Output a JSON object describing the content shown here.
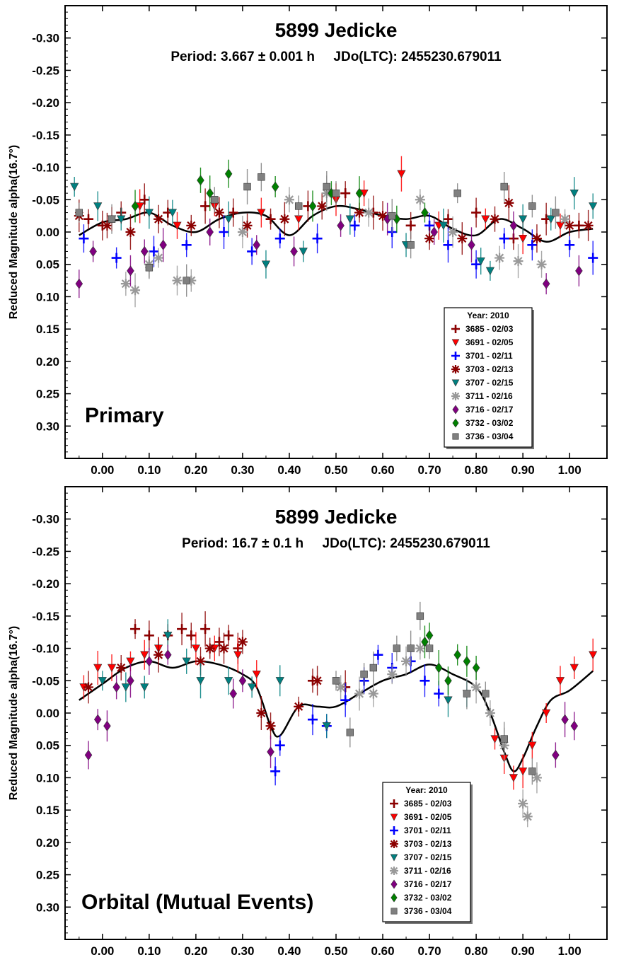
{
  "chart_data": [
    {
      "type": "scatter",
      "title": "5899 Jedicke",
      "subtitle": "Period: 3.667 ± 0.001 h     JDo(LTC): 2455230.679011",
      "ylabel": "Reduced Magnitude alpha(16.7°)",
      "xlabel": "",
      "panel_label": "Primary",
      "xlim": [
        -0.08,
        1.08
      ],
      "ylim": [
        0.35,
        -0.35
      ],
      "y_inverted": true,
      "x_ticks": [
        "0.00",
        "0.10",
        "0.20",
        "0.30",
        "0.40",
        "0.50",
        "0.60",
        "0.70",
        "0.80",
        "0.90",
        "1.00"
      ],
      "x_tick_values": [
        0,
        0.1,
        0.2,
        0.3,
        0.4,
        0.5,
        0.6,
        0.7,
        0.8,
        0.9,
        1.0
      ],
      "y_ticks": [
        "-0.30",
        "-0.25",
        "-0.20",
        "-0.15",
        "-0.10",
        "-0.05",
        "0.00",
        "0.05",
        "0.10",
        "0.15",
        "0.20",
        "0.25",
        "0.30"
      ],
      "y_tick_values": [
        -0.3,
        -0.25,
        -0.2,
        -0.15,
        -0.1,
        -0.05,
        0.0,
        0.05,
        0.1,
        0.15,
        0.2,
        0.25,
        0.3
      ],
      "grid": false,
      "legend": {
        "title": "Year: 2010",
        "position": "bottom-right",
        "entries": [
          {
            "label": "3685 - 02/03",
            "color": "#8B0000",
            "marker": "plus"
          },
          {
            "label": "3691 - 02/05",
            "color": "#FF0000",
            "marker": "triangle-down"
          },
          {
            "label": "3701 - 02/11",
            "color": "#0000FF",
            "marker": "plus"
          },
          {
            "label": "3703 - 02/13",
            "color": "#8B0000",
            "marker": "star"
          },
          {
            "label": "3707 - 02/15",
            "color": "#008080",
            "marker": "triangle-down"
          },
          {
            "label": "3711 - 02/16",
            "color": "#999999",
            "marker": "star"
          },
          {
            "label": "3716 - 02/17",
            "color": "#800080",
            "marker": "diamond"
          },
          {
            "label": "3732 - 03/02",
            "color": "#008000",
            "marker": "diamond"
          },
          {
            "label": "3736 - 03/04",
            "color": "#808080",
            "marker": "square"
          }
        ]
      },
      "fit_curve": {
        "x": [
          -0.05,
          0.0,
          0.05,
          0.1,
          0.15,
          0.2,
          0.25,
          0.3,
          0.35,
          0.4,
          0.45,
          0.5,
          0.55,
          0.6,
          0.65,
          0.7,
          0.75,
          0.8,
          0.85,
          0.9,
          0.95,
          1.0,
          1.05
        ],
        "y": [
          0.005,
          -0.015,
          -0.02,
          -0.03,
          -0.01,
          0.0,
          -0.02,
          -0.03,
          -0.025,
          0.005,
          -0.025,
          -0.04,
          -0.035,
          -0.025,
          -0.02,
          -0.025,
          -0.005,
          0.005,
          -0.02,
          -0.005,
          0.015,
          0.0,
          -0.005
        ]
      },
      "series": [
        {
          "name": "3685 - 02/03",
          "x": [
            -0.03,
            0.0,
            0.04,
            0.09,
            0.14,
            0.22,
            0.28,
            0.36,
            0.44,
            0.52,
            0.58,
            0.66,
            0.74,
            0.8,
            0.88,
            0.95,
            1.02
          ],
          "y": [
            -0.02,
            -0.01,
            -0.03,
            -0.05,
            -0.03,
            -0.04,
            -0.03,
            -0.02,
            -0.04,
            -0.06,
            -0.03,
            -0.01,
            -0.02,
            -0.03,
            0.01,
            -0.02,
            -0.01
          ]
        },
        {
          "name": "3691 - 02/05",
          "x": [
            0.02,
            0.08,
            0.16,
            0.24,
            0.34,
            0.42,
            0.5,
            0.56,
            0.64,
            0.72,
            0.82,
            0.9,
            0.98
          ],
          "y": [
            -0.02,
            -0.04,
            -0.01,
            -0.04,
            -0.03,
            -0.02,
            -0.05,
            -0.06,
            -0.09,
            -0.01,
            -0.02,
            0.01,
            -0.01
          ]
        },
        {
          "name": "3701 - 02/11",
          "x": [
            -0.04,
            0.03,
            0.11,
            0.18,
            0.26,
            0.32,
            0.38,
            0.46,
            0.54,
            0.62,
            0.7,
            0.74,
            0.8,
            0.86,
            0.92,
            1.0,
            1.05
          ],
          "y": [
            0.01,
            0.04,
            0.03,
            0.02,
            0.0,
            0.03,
            0.01,
            0.01,
            -0.01,
            0.0,
            -0.01,
            0.02,
            0.05,
            0.01,
            0.02,
            0.02,
            0.04
          ]
        },
        {
          "name": "3703 - 02/13",
          "x": [
            -0.05,
            0.01,
            0.06,
            0.12,
            0.19,
            0.25,
            0.31,
            0.39,
            0.47,
            0.55,
            0.6,
            0.7,
            0.77,
            0.84,
            0.87,
            0.93,
            1.0,
            1.04
          ],
          "y": [
            -0.025,
            -0.01,
            0.0,
            -0.02,
            -0.01,
            -0.03,
            -0.01,
            -0.02,
            -0.04,
            -0.03,
            -0.025,
            0.01,
            0.01,
            -0.02,
            -0.045,
            0.01,
            -0.01,
            -0.01
          ]
        },
        {
          "name": "3707 - 02/15",
          "x": [
            -0.06,
            -0.01,
            0.04,
            0.1,
            0.15,
            0.27,
            0.35,
            0.43,
            0.53,
            0.65,
            0.73,
            0.81,
            0.83,
            0.9,
            0.96,
            1.01,
            1.05
          ],
          "y": [
            -0.07,
            -0.04,
            -0.02,
            -0.03,
            -0.03,
            -0.02,
            0.05,
            0.03,
            -0.02,
            0.02,
            -0.01,
            0.045,
            0.06,
            -0.02,
            -0.02,
            -0.06,
            -0.04
          ]
        },
        {
          "name": "3711 - 02/16",
          "x": [
            0.05,
            0.07,
            0.1,
            0.12,
            0.16,
            0.19,
            0.3,
            0.4,
            0.48,
            0.57,
            0.68,
            0.75,
            0.85,
            0.89,
            0.94,
            0.99
          ],
          "y": [
            0.08,
            0.09,
            0.05,
            0.04,
            0.075,
            0.075,
            0.0,
            -0.05,
            -0.06,
            -0.03,
            -0.05,
            0.0,
            0.04,
            0.045,
            0.05,
            -0.02
          ]
        },
        {
          "name": "3716 - 02/17",
          "x": [
            -0.05,
            -0.02,
            0.06,
            0.09,
            0.13,
            0.23,
            0.33,
            0.41,
            0.51,
            0.61,
            0.71,
            0.79,
            0.88,
            0.95,
            1.02
          ],
          "y": [
            0.08,
            0.03,
            0.06,
            0.03,
            0.02,
            0.0,
            0.02,
            0.03,
            -0.01,
            -0.02,
            0.0,
            0.02,
            -0.01,
            0.08,
            0.06
          ]
        },
        {
          "name": "3732 - 03/02",
          "x": [
            0.07,
            0.21,
            0.23,
            0.27,
            0.37,
            0.45,
            0.49,
            0.55,
            0.63,
            0.69
          ],
          "y": [
            -0.04,
            -0.08,
            -0.06,
            -0.09,
            -0.07,
            -0.04,
            -0.06,
            -0.06,
            -0.02,
            -0.03
          ]
        },
        {
          "name": "3736 - 03/04",
          "x": [
            -0.05,
            0.02,
            0.1,
            0.18,
            0.24,
            0.31,
            0.34,
            0.42,
            0.48,
            0.5,
            0.62,
            0.66,
            0.76,
            0.86,
            0.92,
            0.97
          ],
          "y": [
            -0.03,
            -0.02,
            0.055,
            0.075,
            -0.05,
            -0.07,
            -0.085,
            -0.04,
            -0.07,
            -0.06,
            -0.025,
            0.02,
            -0.06,
            -0.07,
            -0.04,
            -0.03
          ]
        }
      ]
    },
    {
      "type": "scatter",
      "title": "5899 Jedicke",
      "subtitle": "Period: 16.7 ± 0.1 h     JDo(LTC): 2455230.679011",
      "ylabel": "Reduced Magnitude alpha(16.7°)",
      "xlabel": "",
      "panel_label": "Orbital (Mutual Events)",
      "xlim": [
        -0.08,
        1.08
      ],
      "ylim": [
        0.35,
        -0.35
      ],
      "y_inverted": true,
      "x_ticks": [
        "0.00",
        "0.10",
        "0.20",
        "0.30",
        "0.40",
        "0.50",
        "0.60",
        "0.70",
        "0.80",
        "0.90",
        "1.00"
      ],
      "x_tick_values": [
        0,
        0.1,
        0.2,
        0.3,
        0.4,
        0.5,
        0.6,
        0.7,
        0.8,
        0.9,
        1.0
      ],
      "y_ticks": [
        "-0.30",
        "-0.25",
        "-0.20",
        "-0.15",
        "-0.10",
        "-0.05",
        "0.00",
        "0.05",
        "0.10",
        "0.15",
        "0.20",
        "0.25",
        "0.30"
      ],
      "y_tick_values": [
        -0.3,
        -0.25,
        -0.2,
        -0.15,
        -0.1,
        -0.05,
        0.0,
        0.05,
        0.1,
        0.15,
        0.2,
        0.25,
        0.3
      ],
      "grid": false,
      "legend": {
        "title": "Year: 2010",
        "position": "bottom-right",
        "entries": [
          {
            "label": "3685 - 02/03",
            "color": "#8B0000",
            "marker": "plus"
          },
          {
            "label": "3691 - 02/05",
            "color": "#FF0000",
            "marker": "triangle-down"
          },
          {
            "label": "3701 - 02/11",
            "color": "#0000FF",
            "marker": "plus"
          },
          {
            "label": "3703 - 02/13",
            "color": "#8B0000",
            "marker": "star"
          },
          {
            "label": "3707 - 02/15",
            "color": "#008080",
            "marker": "triangle-down"
          },
          {
            "label": "3711 - 02/16",
            "color": "#999999",
            "marker": "star"
          },
          {
            "label": "3716 - 02/17",
            "color": "#800080",
            "marker": "diamond"
          },
          {
            "label": "3732 - 03/02",
            "color": "#008000",
            "marker": "diamond"
          },
          {
            "label": "3736 - 03/04",
            "color": "#808080",
            "marker": "square"
          }
        ]
      },
      "fit_curve": {
        "x": [
          -0.05,
          0.0,
          0.05,
          0.1,
          0.15,
          0.2,
          0.25,
          0.3,
          0.33,
          0.36,
          0.38,
          0.42,
          0.46,
          0.5,
          0.55,
          0.6,
          0.65,
          0.7,
          0.75,
          0.8,
          0.83,
          0.86,
          0.88,
          0.9,
          0.93,
          0.96,
          1.0,
          1.05
        ],
        "y": [
          -0.02,
          -0.045,
          -0.07,
          -0.08,
          -0.07,
          -0.08,
          -0.075,
          -0.06,
          -0.04,
          0.02,
          0.035,
          -0.01,
          -0.01,
          -0.01,
          -0.03,
          -0.05,
          -0.06,
          -0.075,
          -0.06,
          -0.04,
          0.0,
          0.06,
          0.09,
          0.07,
          0.02,
          -0.02,
          -0.035,
          -0.065
        ]
      },
      "series": [
        {
          "name": "3685 - 02/03",
          "x": [
            0.07,
            0.1,
            0.14,
            0.17,
            0.19,
            0.22,
            0.25,
            0.27,
            0.29,
            0.45,
            0.52
          ],
          "y": [
            -0.13,
            -0.12,
            -0.12,
            -0.13,
            -0.12,
            -0.13,
            -0.11,
            -0.12,
            -0.1,
            -0.05,
            -0.04
          ]
        },
        {
          "name": "3691 - 02/05",
          "x": [
            -0.04,
            -0.01,
            0.02,
            0.06,
            0.09,
            0.12,
            0.2,
            0.24,
            0.29,
            0.33,
            0.84,
            0.86,
            0.88,
            0.9,
            0.92,
            0.95,
            0.98,
            1.01,
            1.05
          ],
          "y": [
            -0.04,
            -0.07,
            -0.07,
            -0.08,
            -0.09,
            -0.1,
            -0.1,
            -0.1,
            -0.09,
            -0.06,
            0.04,
            0.07,
            0.1,
            0.09,
            0.05,
            0.0,
            -0.05,
            -0.07,
            -0.09
          ]
        },
        {
          "name": "3701 - 02/11",
          "x": [
            0.37,
            0.38,
            0.45,
            0.48,
            0.52,
            0.56,
            0.59,
            0.62,
            0.66,
            0.69,
            0.72
          ],
          "y": [
            0.09,
            0.05,
            0.01,
            0.02,
            -0.02,
            -0.05,
            -0.09,
            -0.07,
            -0.08,
            -0.05,
            -0.03
          ]
        },
        {
          "name": "3703 - 02/13",
          "x": [
            -0.03,
            0.04,
            0.12,
            0.21,
            0.23,
            0.26,
            0.3,
            0.34,
            0.36,
            0.42,
            0.46
          ],
          "y": [
            -0.04,
            -0.07,
            -0.09,
            -0.08,
            -0.1,
            -0.1,
            -0.11,
            0.0,
            0.02,
            -0.01,
            -0.05
          ]
        },
        {
          "name": "3707 - 02/15",
          "x": [
            0.0,
            0.05,
            0.09,
            0.14,
            0.18,
            0.21,
            0.27,
            0.32,
            0.38,
            0.48,
            0.74,
            0.78
          ],
          "y": [
            -0.05,
            -0.04,
            -0.04,
            -0.12,
            -0.08,
            -0.05,
            -0.05,
            -0.04,
            -0.05,
            0.02,
            -0.02,
            -0.03
          ]
        },
        {
          "name": "3711 - 02/16",
          "x": [
            0.51,
            0.55,
            0.58,
            0.62,
            0.65,
            0.68,
            0.8,
            0.83,
            0.86,
            0.9,
            0.91,
            0.93
          ],
          "y": [
            -0.04,
            -0.03,
            -0.03,
            -0.06,
            -0.08,
            -0.1,
            -0.04,
            0.0,
            0.05,
            0.14,
            0.16,
            0.1
          ]
        },
        {
          "name": "3716 - 02/17",
          "x": [
            -0.03,
            -0.01,
            0.01,
            0.03,
            0.06,
            0.1,
            0.14,
            0.28,
            0.3,
            0.36,
            0.97,
            0.99,
            1.01
          ],
          "y": [
            0.065,
            0.01,
            0.02,
            -0.04,
            -0.05,
            -0.08,
            -0.09,
            -0.03,
            -0.05,
            0.06,
            0.065,
            0.01,
            0.02
          ]
        },
        {
          "name": "3732 - 03/02",
          "x": [
            0.69,
            0.7,
            0.72,
            0.74,
            0.76,
            0.78,
            0.8
          ],
          "y": [
            -0.11,
            -0.12,
            -0.07,
            -0.05,
            -0.09,
            -0.08,
            -0.07
          ]
        },
        {
          "name": "3736 - 03/04",
          "x": [
            0.5,
            0.53,
            0.56,
            0.58,
            0.63,
            0.66,
            0.68,
            0.7,
            0.78,
            0.82,
            0.86,
            0.92
          ],
          "y": [
            -0.05,
            0.03,
            -0.06,
            -0.07,
            -0.1,
            -0.1,
            -0.15,
            -0.1,
            -0.03,
            -0.03,
            0.04,
            0.09
          ]
        }
      ]
    }
  ]
}
